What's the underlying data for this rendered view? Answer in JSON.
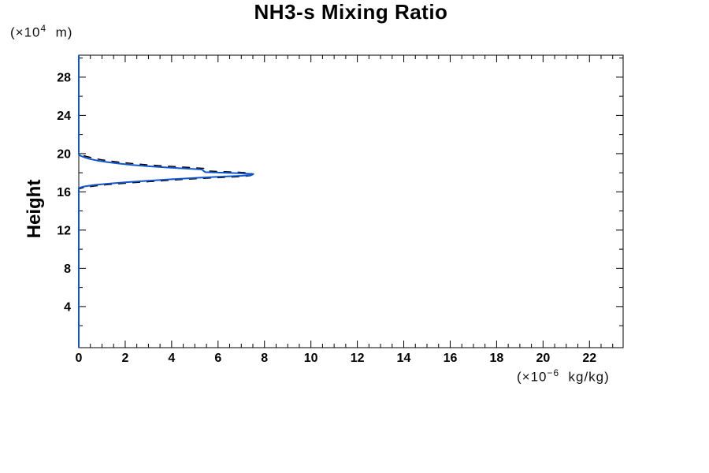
{
  "title": "NH3-s Mixing Ratio",
  "y_axis": {
    "label": "Height",
    "unit": {
      "prefix": "(×10",
      "sup": "4",
      "suffix": "  m)"
    }
  },
  "x_axis": {
    "unit": {
      "prefix": "(×10",
      "sup": "−6",
      "suffix": "  kg/kg)"
    }
  },
  "colors": {
    "curve": "#1155cc",
    "dashes": "#000000",
    "frame": "#000000",
    "text": "#000000",
    "background": "#ffffff"
  },
  "chart_data": {
    "type": "line",
    "title": "NH3-s Mixing Ratio",
    "xlabel": "(×10⁻⁶ kg/kg)",
    "ylabel": "Height",
    "ylabel_unit": "(×10⁴ m)",
    "xlim": [
      0,
      23.45
    ],
    "ylim": [
      -0.3,
      30.3
    ],
    "x_ticks_major": [
      0,
      2,
      4,
      6,
      8,
      10,
      12,
      14,
      16,
      18,
      20,
      22
    ],
    "x_minor_step": 0.5,
    "y_ticks_major": [
      4,
      8,
      12,
      16,
      20,
      24,
      28
    ],
    "y_ticks_minor": [
      2,
      6,
      10,
      14,
      18,
      22,
      26,
      30
    ],
    "grid": false,
    "legend": "none",
    "frame": "box-with-inward-ticks",
    "description": "Vertical profile: mixing ratio is ~0 at all heights except a spike between heights ~16.4 and ~19.9 (×10^4 m), peaking near 7.5 ×10^-6 kg/kg at height ~17.9 ×10^4 m",
    "series": [
      {
        "name": "NH3-s profile (solid blue)",
        "color": "#1155cc",
        "style": "solid",
        "width": 2,
        "points": [
          [
            0,
            -0.3
          ],
          [
            0,
            16.4
          ],
          [
            0.2,
            16.55
          ],
          [
            0.6,
            16.7
          ],
          [
            1.2,
            16.85
          ],
          [
            2.0,
            17.0
          ],
          [
            3.0,
            17.16
          ],
          [
            4.0,
            17.32
          ],
          [
            5.0,
            17.46
          ],
          [
            6.0,
            17.58
          ],
          [
            7.0,
            17.68
          ],
          [
            7.45,
            17.76
          ],
          [
            7.52,
            17.86
          ],
          [
            6.8,
            17.96
          ],
          [
            6.0,
            18.02
          ],
          [
            5.45,
            18.06
          ],
          [
            5.3,
            18.34
          ],
          [
            4.5,
            18.46
          ],
          [
            3.7,
            18.57
          ],
          [
            3.0,
            18.68
          ],
          [
            2.3,
            18.82
          ],
          [
            1.7,
            18.97
          ],
          [
            1.2,
            19.12
          ],
          [
            0.8,
            19.27
          ],
          [
            0.5,
            19.43
          ],
          [
            0.3,
            19.57
          ],
          [
            0.15,
            19.7
          ],
          [
            0.05,
            19.8
          ],
          [
            0,
            19.92
          ],
          [
            0,
            30.3
          ]
        ]
      },
      {
        "name": "NH3-s profile (dashed black)",
        "color": "#000000",
        "style": "dashed",
        "width": 1.5,
        "points": [
          [
            0,
            -0.3
          ],
          [
            0,
            16.32
          ],
          [
            0.25,
            16.48
          ],
          [
            0.7,
            16.62
          ],
          [
            1.3,
            16.77
          ],
          [
            2.1,
            16.92
          ],
          [
            3.1,
            17.08
          ],
          [
            4.1,
            17.24
          ],
          [
            5.1,
            17.38
          ],
          [
            6.1,
            17.5
          ],
          [
            7.0,
            17.6
          ],
          [
            7.4,
            17.7
          ],
          [
            7.45,
            17.98
          ],
          [
            6.7,
            18.08
          ],
          [
            5.9,
            18.14
          ],
          [
            5.5,
            18.18
          ],
          [
            5.4,
            18.46
          ],
          [
            4.6,
            18.58
          ],
          [
            3.8,
            18.69
          ],
          [
            3.1,
            18.8
          ],
          [
            2.4,
            18.94
          ],
          [
            1.8,
            19.09
          ],
          [
            1.3,
            19.24
          ],
          [
            0.9,
            19.39
          ],
          [
            0.6,
            19.55
          ],
          [
            0.35,
            19.69
          ],
          [
            0.2,
            19.8
          ],
          [
            0.1,
            19.9
          ],
          [
            0,
            20.0
          ],
          [
            0,
            30.3
          ]
        ]
      }
    ]
  }
}
